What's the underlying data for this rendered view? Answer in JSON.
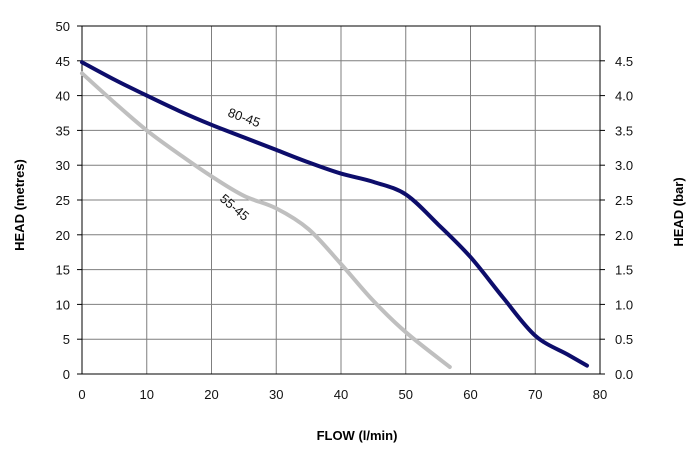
{
  "chart_data": {
    "type": "line",
    "title": "",
    "xlabel": "FLOW (l/min)",
    "ylabel": "HEAD (metres)",
    "y2label": "HEAD (bar)",
    "xlim": [
      0,
      80
    ],
    "ylim": [
      0,
      50
    ],
    "y2lim": [
      0,
      5
    ],
    "grid": true,
    "legend": "none",
    "x_ticks": [
      "0",
      "10",
      "20",
      "30",
      "40",
      "50",
      "60",
      "70",
      "80"
    ],
    "y_ticks": [
      "0",
      "5",
      "10",
      "15",
      "20",
      "25",
      "30",
      "35",
      "40",
      "45",
      "50"
    ],
    "y2_ticks": [
      "0.0",
      "0.5",
      "1.0",
      "1.5",
      "2.0",
      "2.5",
      "3.0",
      "3.5",
      "4.0",
      "4.5"
    ],
    "series": [
      {
        "name": "80-45",
        "color": "#0d0d6b",
        "points": [
          [
            0,
            44.8
          ],
          [
            5,
            42.3
          ],
          [
            10,
            40
          ],
          [
            15,
            37.8
          ],
          [
            20,
            35.8
          ],
          [
            25,
            34
          ],
          [
            30,
            32.2
          ],
          [
            35,
            30.4
          ],
          [
            40,
            28.8
          ],
          [
            45,
            27.6
          ],
          [
            50,
            25.8
          ],
          [
            55,
            21.5
          ],
          [
            60,
            16.8
          ],
          [
            65,
            11
          ],
          [
            70,
            5.5
          ],
          [
            75,
            2.8
          ],
          [
            78,
            1.2
          ]
        ]
      },
      {
        "name": "55-45",
        "color": "#bfbfbf",
        "points": [
          [
            0,
            43.2
          ],
          [
            5,
            39
          ],
          [
            10,
            35
          ],
          [
            15,
            31.6
          ],
          [
            20,
            28.4
          ],
          [
            25,
            25.6
          ],
          [
            30,
            23.8
          ],
          [
            35,
            20.8
          ],
          [
            40,
            15.8
          ],
          [
            45,
            10.5
          ],
          [
            50,
            6
          ],
          [
            56.8,
            1
          ]
        ]
      }
    ]
  }
}
